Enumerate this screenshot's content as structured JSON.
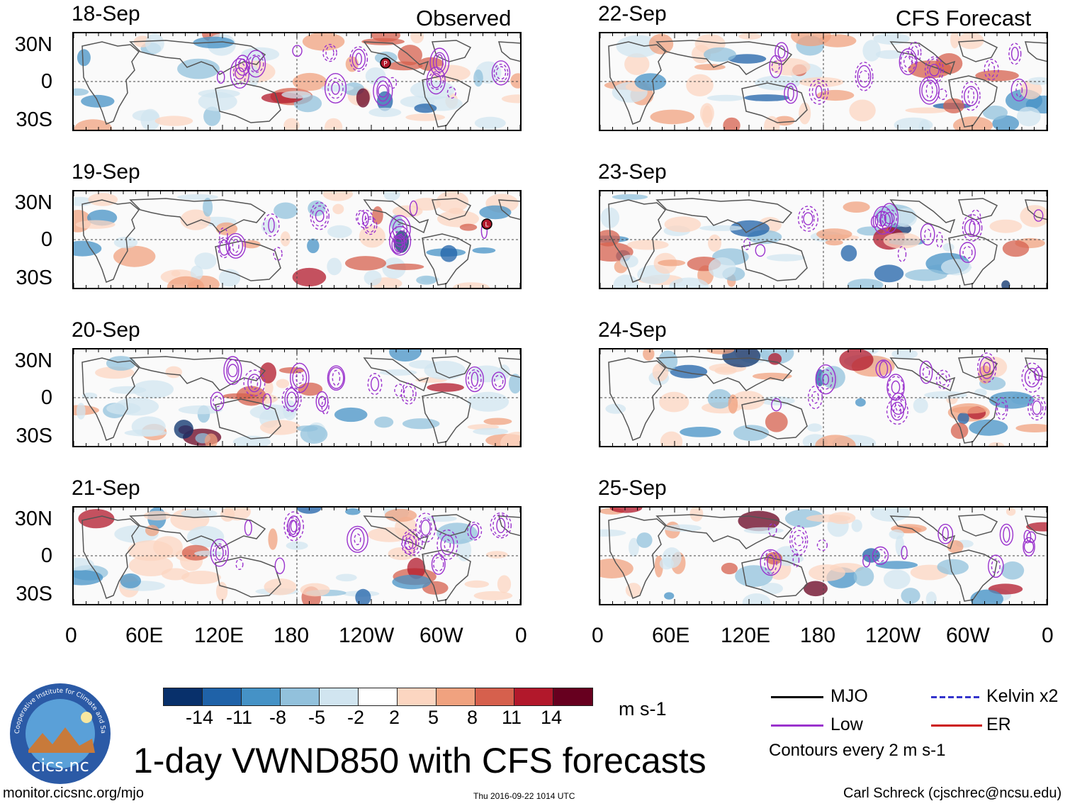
{
  "columns": [
    {
      "header": "Observed",
      "panels": [
        {
          "date": "18-Sep"
        },
        {
          "date": "19-Sep"
        },
        {
          "date": "20-Sep"
        },
        {
          "date": "21-Sep"
        }
      ]
    },
    {
      "header": "CFS Forecast",
      "panels": [
        {
          "date": "22-Sep"
        },
        {
          "date": "23-Sep"
        },
        {
          "date": "24-Sep"
        },
        {
          "date": "25-Sep"
        }
      ]
    }
  ],
  "lat_labels": [
    "30N",
    "0",
    "30S"
  ],
  "lon_labels": [
    "0",
    "60E",
    "120E",
    "180",
    "120W",
    "60W",
    "0"
  ],
  "colorbar": {
    "colors": [
      "#08306b",
      "#1f62a8",
      "#4592c6",
      "#92c1dc",
      "#d1e5f0",
      "#ffffff",
      "#fcd6c1",
      "#f0a27f",
      "#d6604d",
      "#b2182b",
      "#67001f"
    ],
    "labels": [
      "-14",
      "-11",
      "-8",
      "-5",
      "-2",
      "2",
      "5",
      "8",
      "11",
      "14"
    ],
    "units": "m s-1"
  },
  "legend": {
    "items": [
      {
        "label": "MJO",
        "color": "#000000"
      },
      {
        "label": "Kelvin x2",
        "color": "#3333cc"
      },
      {
        "label": "Low",
        "color": "#9a32cd"
      },
      {
        "label": "ER",
        "color": "#cc1111"
      }
    ],
    "contour_note": "Contours every 2 m s-1"
  },
  "title": "1-day VWND850 with CFS forecasts",
  "footer": {
    "left": "monitor.cicsnc.org/mjo",
    "center": "Thu 2016-09-22 1014 UTC",
    "right": "Carl Schreck (cjschrec@ncsu.edu)"
  },
  "logo": {
    "text": "cics.nc",
    "ring_text": "Cooperative Institute for Climate and Satellites"
  },
  "storm_markers": [
    "P",
    "L"
  ]
}
